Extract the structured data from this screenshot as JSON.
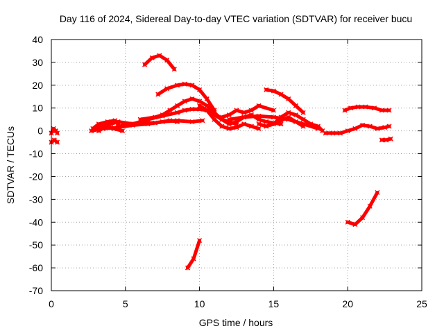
{
  "chart_data": {
    "type": "scatter",
    "title": "Day 116 of 2024, Sidereal Day-to-day VTEC variation (SDTVAR) for receiver bucu",
    "xlabel": "GPS time / hours",
    "ylabel": "SDTVAR / TECUs",
    "xlim": [
      0,
      25
    ],
    "ylim": [
      -70,
      40
    ],
    "xticks": [
      0,
      5,
      10,
      15,
      20,
      25
    ],
    "yticks": [
      40,
      30,
      20,
      10,
      0,
      -10,
      -20,
      -30,
      -40,
      -50,
      -60,
      -70
    ],
    "grid": true,
    "legend": "none",
    "series_color": "#ff0000",
    "series": [
      {
        "name": "arc-1",
        "x": [
          0.0,
          0.15,
          0.3,
          0.4
        ],
        "y": [
          -1,
          1,
          0,
          -1
        ]
      },
      {
        "name": "arc-2",
        "x": [
          0.0,
          0.2,
          0.4
        ],
        "y": [
          -5,
          -4,
          -5
        ]
      },
      {
        "name": "arc-3",
        "x": [
          2.7,
          3.5,
          4.5,
          5.5,
          6.5,
          7.5,
          8.5,
          9.5,
          10.2
        ],
        "y": [
          0,
          1,
          1.5,
          2.5,
          3,
          4,
          4.5,
          4,
          4.5
        ]
      },
      {
        "name": "arc-4",
        "x": [
          2.8,
          3.2,
          3.8,
          4.3,
          4.6,
          5.2,
          6.0,
          7.0,
          8.0,
          8.5
        ],
        "y": [
          1,
          3,
          4,
          4.5,
          2,
          3,
          3.5,
          3.5,
          4.5,
          4
        ]
      },
      {
        "name": "arc-5",
        "x": [
          3.0,
          3.5,
          4.0,
          4.5,
          5.5,
          6.5,
          7.5,
          8.5,
          9.0,
          9.5,
          10.0,
          10.5,
          11.0,
          11.5,
          12.0,
          12.5
        ],
        "y": [
          1,
          2,
          3,
          4,
          3,
          5,
          6.5,
          8,
          9,
          9.5,
          9.5,
          9,
          7,
          5,
          4,
          3
        ]
      },
      {
        "name": "arc-6",
        "x": [
          3.2,
          3.7,
          4.2,
          4.8
        ],
        "y": [
          0,
          2,
          1,
          0
        ]
      },
      {
        "name": "arc-7",
        "x": [
          6.3,
          6.8,
          7.3,
          7.8,
          8.3
        ],
        "y": [
          29,
          32,
          33,
          31,
          27
        ]
      },
      {
        "name": "arc-8",
        "x": [
          7.2,
          7.8,
          8.5,
          9.0,
          9.5,
          10.0,
          10.5,
          11.0
        ],
        "y": [
          16,
          18.5,
          20,
          20.5,
          20,
          18,
          14,
          9
        ]
      },
      {
        "name": "arc-9",
        "x": [
          6.0,
          7.0,
          7.5,
          8.0,
          8.5,
          9.0,
          9.5,
          10.0,
          10.5,
          11.0,
          11.5,
          12.0,
          12.5,
          13.0,
          13.5,
          14.0,
          14.5,
          15.5
        ],
        "y": [
          5,
          6,
          7,
          9,
          11,
          13,
          14,
          13,
          11,
          8,
          5,
          3,
          4,
          6,
          7,
          5,
          4,
          3
        ]
      },
      {
        "name": "arc-10",
        "x": [
          9.2,
          9.6,
          10.0
        ],
        "y": [
          -60,
          -56,
          -48
        ]
      },
      {
        "name": "arc-11",
        "x": [
          10.0,
          10.5,
          11.0,
          11.5,
          12.0,
          12.5,
          13.0,
          13.5,
          14.0
        ],
        "y": [
          11,
          9,
          5,
          2,
          1,
          1.5,
          3,
          2,
          1
        ]
      },
      {
        "name": "arc-12",
        "x": [
          11.5,
          12.0,
          12.5,
          13.0,
          13.5,
          14.0,
          15.0
        ],
        "y": [
          6,
          7,
          9,
          8,
          9,
          11,
          9
        ]
      },
      {
        "name": "arc-13",
        "x": [
          12.0,
          13.0,
          14.0,
          15.0,
          16.0,
          17.0,
          18.0
        ],
        "y": [
          5,
          6,
          6.5,
          6,
          5,
          3,
          1
        ]
      },
      {
        "name": "arc-14",
        "x": [
          14.0,
          14.5,
          15.0,
          16.0,
          16.5,
          17.0
        ],
        "y": [
          3,
          2,
          3,
          6,
          4,
          2
        ]
      },
      {
        "name": "arc-15",
        "x": [
          14.5,
          15.0,
          15.5,
          16.0,
          16.5,
          17.0
        ],
        "y": [
          18,
          17.5,
          16,
          14,
          11,
          8
        ]
      },
      {
        "name": "arc-16",
        "x": [
          15.0,
          15.5,
          16.0,
          16.5,
          17.0,
          17.5,
          18.0,
          18.3
        ],
        "y": [
          3,
          6,
          8,
          7,
          5,
          3,
          2,
          0
        ]
      },
      {
        "name": "arc-17",
        "x": [
          18.5,
          19.0,
          19.5,
          20.0,
          20.5,
          21.0,
          21.5,
          22.0,
          22.5,
          22.8
        ],
        "y": [
          -1,
          -1,
          -1,
          0,
          1,
          2.5,
          2,
          1,
          1.5,
          2
        ]
      },
      {
        "name": "arc-18",
        "x": [
          19.8,
          20.2,
          20.7,
          21.2,
          21.8,
          22.3,
          22.8
        ],
        "y": [
          9,
          10,
          10.5,
          10.5,
          10,
          9,
          9
        ]
      },
      {
        "name": "arc-19",
        "x": [
          20.0,
          20.5,
          21.0,
          21.5,
          22.0
        ],
        "y": [
          -40,
          -41,
          -38,
          -33,
          -27
        ]
      },
      {
        "name": "arc-20",
        "x": [
          22.3,
          22.6,
          22.9
        ],
        "y": [
          -4,
          -4,
          -3.5
        ]
      }
    ]
  }
}
